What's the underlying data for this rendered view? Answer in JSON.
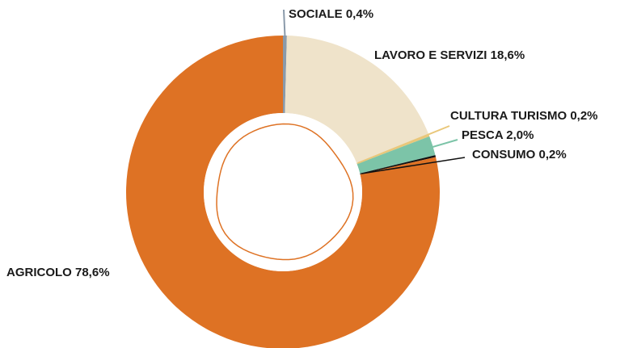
{
  "chart_data": {
    "type": "pie",
    "donut": true,
    "title": "",
    "slices": [
      {
        "name": "SOCIALE",
        "value": 0.4,
        "label": "SOCIALE 0,4%",
        "color": "#8a9aaa"
      },
      {
        "name": "LAVORO E SERVIZI",
        "value": 18.6,
        "label": "LAVORO E SERVIZI 18,6%",
        "color": "#efe3ca"
      },
      {
        "name": "CULTURA TURISMO",
        "value": 0.2,
        "label": "CULTURA TURISMO 0,2%",
        "color": "#e9c77a"
      },
      {
        "name": "PESCA",
        "value": 2.0,
        "label": "PESCA 2,0%",
        "color": "#7cc4a8"
      },
      {
        "name": "CONSUMO",
        "value": 0.2,
        "label": "CONSUMO 0,2%",
        "color": "#111111"
      },
      {
        "name": "AGRICOLO",
        "value": 78.6,
        "label": "AGRICOLO 78,6%",
        "color": "#de7224"
      }
    ],
    "center_ring_color": "#de7224",
    "legend": "none"
  }
}
